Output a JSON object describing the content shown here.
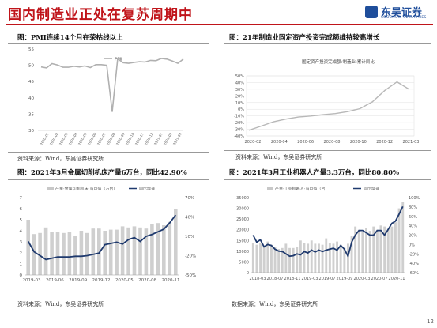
{
  "page": {
    "title": "国内制造业正处在复苏周期中",
    "logo_name": "东吴证券",
    "logo_en": "SOOCHOW SECURITIES",
    "page_number": "12",
    "colors": {
      "brand_red": "#c0141a",
      "brand_blue": "#1f4e9b"
    }
  },
  "fig1": {
    "title": "图：PMI连续14个月在荣枯线以上",
    "source": "资料来源：Wind，东吴证券研究所"
  },
  "fig2": {
    "title": "图：21年制造业固定资产投资完成额维持较高增长",
    "source": "资料来源：Wind，东吴证券研究所"
  },
  "fig3": {
    "title": "图：2021年3月金属切削机床产量6万台，同比42.90%",
    "source": "资料来源：Wind，东吴证券研究所"
  },
  "fig4": {
    "title": "图：2021年3月工业机器人产量3.3万台，同比80.80%",
    "source": "数据来源：Wind，东吴证券研究所"
  },
  "chart_data": [
    {
      "type": "line",
      "legend": [
        "PMI"
      ],
      "legend_position": "top-center",
      "x": [
        "2019-01",
        "2019-02",
        "2019-03",
        "2019-04",
        "2019-05",
        "2019-06",
        "2019-07",
        "2019-08",
        "2019-09",
        "2019-10",
        "2019-11",
        "2019-12",
        "2020-01",
        "2020-02",
        "2020-03",
        "2020-04",
        "2020-05",
        "2020-06",
        "2020-07",
        "2020-08",
        "2020-09",
        "2020-10",
        "2020-11",
        "2020-12",
        "2021-01",
        "2021-02",
        "2021-03"
      ],
      "x_tick_labels": [
        "2020-01",
        "2020-02",
        "2020-03",
        "2020-04",
        "2020-05",
        "2020-06",
        "2020-07",
        "2020-08",
        "2020-09",
        "2020-10",
        "2020-11",
        "2020-12",
        "2021-01",
        "2021-02",
        "2021-03"
      ],
      "series": [
        {
          "name": "PMI",
          "values": [
            49.5,
            49.2,
            50.5,
            50.1,
            49.4,
            49.4,
            49.7,
            49.5,
            49.8,
            49.3,
            50.2,
            50.2,
            50.0,
            35.7,
            52.0,
            50.8,
            50.6,
            50.9,
            51.1,
            51.0,
            51.5,
            51.4,
            52.1,
            51.9,
            51.3,
            50.6,
            51.9
          ]
        }
      ],
      "ylim": [
        30,
        55
      ],
      "yticks": [
        30,
        35,
        40,
        45,
        50,
        55
      ],
      "grid": false
    },
    {
      "type": "line",
      "legend": [
        "固定资产投资完成额:制造业:累计同比"
      ],
      "legend_position": "top-center",
      "x_tick_labels": [
        "2020-02",
        "2020-04",
        "2020-06",
        "2020-08",
        "2020-10",
        "2020-12",
        "2021-03"
      ],
      "series": [
        {
          "name": "固定资产投资完成额:制造业:累计同比",
          "values": [
            -31.5,
            -25.2,
            -18.8,
            -14.8,
            -11.7,
            -10.2,
            -8.1,
            -6.5,
            -3.5,
            0.8,
            11.0,
            28.0,
            41.0,
            29.8
          ]
        }
      ],
      "ylim": [
        -40,
        50
      ],
      "yticks": [
        "-40%",
        "-30%",
        "-20%",
        "-10%",
        "0%",
        "10%",
        "20%",
        "30%",
        "40%",
        "50%"
      ],
      "grid": true
    },
    {
      "type": "bar+line",
      "legend": [
        "产量:金属切削机床:当月值（万台）",
        "同比增速"
      ],
      "legend_position": "top",
      "x_tick_labels": [
        "2019-03",
        "2019-06",
        "2019-09",
        "2019-12",
        "2020-05",
        "2020-08",
        "2020-11"
      ],
      "series": [
        {
          "name": "产量:金属切削机床:当月值（万台）",
          "axis": "left",
          "values": [
            5.0,
            3.7,
            3.8,
            4.3,
            3.9,
            3.9,
            3.8,
            3.9,
            3.5,
            4.0,
            3.8,
            4.2,
            4.2,
            4.0,
            4.1,
            4.1,
            4.4,
            4.3,
            4.4,
            4.3,
            4.2,
            4.6,
            4.7,
            4.5,
            4.8,
            6.0
          ]
        },
        {
          "name": "同比增速",
          "axis": "right",
          "values": [
            2,
            -14,
            -20,
            -26,
            -24,
            -22,
            -22,
            -22,
            -21,
            -21,
            -20,
            -18,
            -16,
            -3,
            -1,
            1,
            -2,
            5,
            8,
            2,
            10,
            13,
            17,
            21,
            31,
            43
          ]
        }
      ],
      "ylim_left": [
        0,
        7
      ],
      "yticks_left": [
        0,
        1,
        2,
        3,
        4,
        5,
        6,
        7
      ],
      "ylim_right": [
        -50,
        70
      ],
      "yticks_right": [
        "-50%",
        "-20%",
        "10%",
        "40%",
        "70%"
      ]
    },
    {
      "type": "bar+line",
      "legend": [
        "产量:工业机器人:当月值（台）",
        "同比增速"
      ],
      "legend_position": "top",
      "x_tick_labels": [
        "2018-03",
        "2018-07",
        "2018-11",
        "2019-03",
        "2019-07",
        "2019-09",
        "2020-03",
        "2020-07",
        "2020-11"
      ],
      "series": [
        {
          "name": "产量:工业机器人:当月值（台）",
          "axis": "left",
          "values": [
            14000,
            13000,
            14000,
            12500,
            14500,
            13000,
            12000,
            11000,
            11500,
            13500,
            11500,
            11500,
            12000,
            15000,
            14000,
            13500,
            15000,
            13500,
            13500,
            13000,
            16000,
            14000,
            13500,
            14500,
            13000,
            11500,
            13500,
            17000,
            21500,
            20000,
            19000,
            21000,
            19500,
            21500,
            20000,
            22000,
            21500,
            20500,
            21500,
            23500,
            30000,
            33000
          ]
        },
        {
          "name": "同比增速",
          "axis": "right",
          "values": [
            20,
            5,
            10,
            -5,
            0,
            -2,
            -10,
            -14,
            -15,
            -20,
            -25,
            -24,
            -20,
            -22,
            -15,
            -18,
            -12,
            -16,
            -12,
            -15,
            -12,
            -10,
            -8,
            -12,
            -2,
            -10,
            -25,
            5,
            20,
            30,
            30,
            25,
            20,
            20,
            30,
            30,
            20,
            32,
            45,
            50,
            65,
            81
          ]
        }
      ],
      "ylim_left": [
        0,
        35000
      ],
      "yticks_left": [
        0,
        5000,
        10000,
        15000,
        20000,
        25000,
        30000,
        35000
      ],
      "ylim_right": [
        -60,
        100
      ],
      "yticks_right": [
        "-60%",
        "-40%",
        "-20%",
        "0%",
        "20%",
        "40%",
        "60%",
        "80%",
        "100%"
      ]
    }
  ]
}
